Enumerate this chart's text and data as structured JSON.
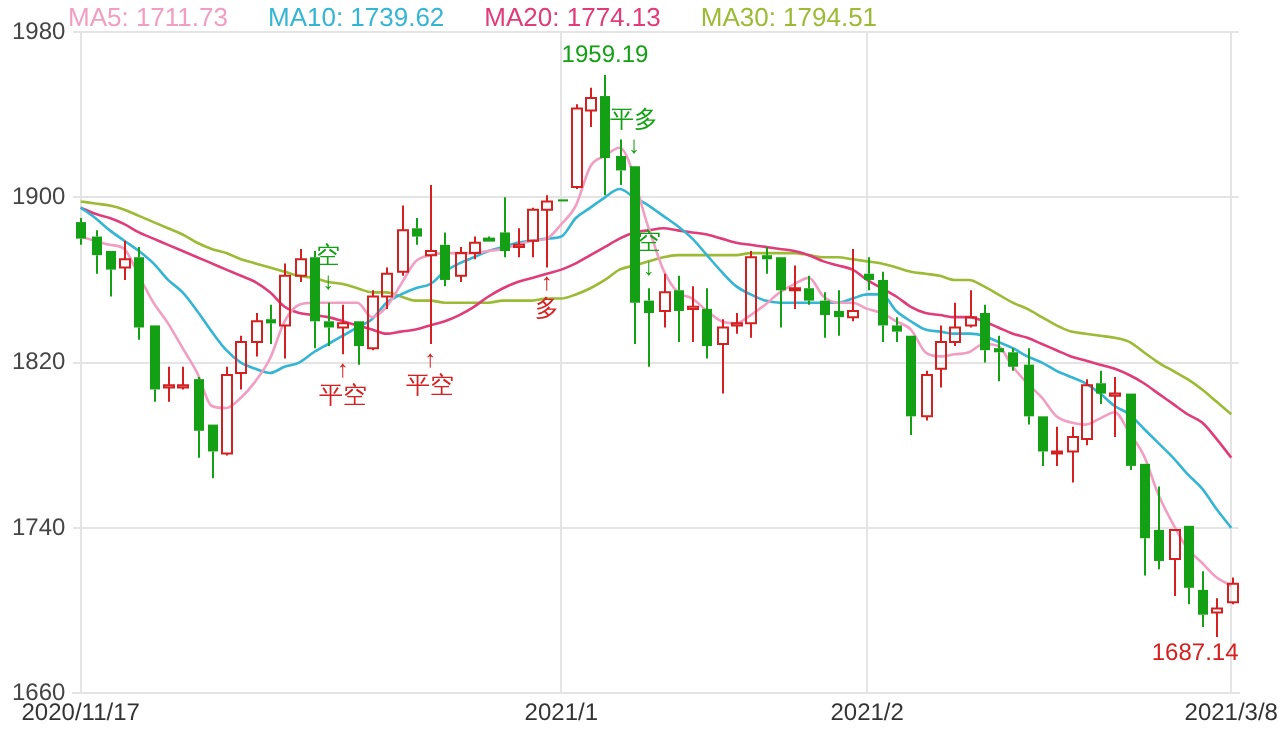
{
  "chart_data": {
    "type": "candlestick",
    "categories": [
      "2020/11/17",
      null,
      null,
      null,
      null,
      null,
      null,
      null,
      null,
      null,
      null,
      null,
      null,
      null,
      null,
      null,
      null,
      null,
      null,
      null,
      null,
      null,
      null,
      null,
      null,
      null,
      null,
      null,
      null,
      null,
      null,
      null,
      null,
      "2021/1",
      null,
      null,
      null,
      null,
      null,
      null,
      null,
      null,
      null,
      null,
      null,
      null,
      null,
      null,
      null,
      null,
      null,
      null,
      null,
      null,
      "2021/2",
      null,
      null,
      null,
      null,
      null,
      null,
      null,
      null,
      null,
      null,
      null,
      null,
      null,
      null,
      null,
      null,
      null,
      null,
      null,
      null,
      null,
      null,
      null,
      null,
      "2021/3/8"
    ],
    "ohlc": [
      [
        1888,
        1890,
        1877,
        1880
      ],
      [
        1881,
        1884,
        1863,
        1872
      ],
      [
        1874,
        1874,
        1852,
        1865
      ],
      [
        1866,
        1879,
        1860,
        1870
      ],
      [
        1871,
        1876,
        1831,
        1837
      ],
      [
        1838,
        1838,
        1801,
        1807
      ],
      [
        1808,
        1818,
        1801,
        1809
      ],
      [
        1808,
        1818,
        1807,
        1809
      ],
      [
        1812,
        1813,
        1774,
        1787
      ],
      [
        1790,
        1790,
        1764,
        1777
      ],
      [
        1776,
        1818,
        1775,
        1814
      ],
      [
        1815,
        1833,
        1807,
        1830
      ],
      [
        1830,
        1844,
        1823,
        1840
      ],
      [
        1841,
        1848,
        1829,
        1839
      ],
      [
        1838,
        1868,
        1822,
        1862
      ],
      [
        1862,
        1875,
        1859,
        1870
      ],
      [
        1871,
        1874,
        1827,
        1840
      ],
      [
        1840,
        1849,
        1828,
        1837
      ],
      [
        1837,
        1848,
        1824,
        1839
      ],
      [
        1840,
        1840,
        1819,
        1828
      ],
      [
        1827,
        1855,
        1826,
        1852
      ],
      [
        1852,
        1866,
        1846,
        1863
      ],
      [
        1864,
        1896,
        1862,
        1884
      ],
      [
        1885,
        1890,
        1877,
        1881
      ],
      [
        1872,
        1906,
        1829,
        1874
      ],
      [
        1877,
        1883,
        1857,
        1860
      ],
      [
        1862,
        1876,
        1859,
        1873
      ],
      [
        1873,
        1881,
        1870,
        1878
      ],
      [
        1880,
        1881,
        1880,
        1880
      ],
      [
        1883,
        1900,
        1871,
        1874
      ],
      [
        1876,
        1885,
        1871,
        1877
      ],
      [
        1879,
        1895,
        1871,
        1894
      ],
      [
        1894,
        1901,
        1866,
        1898
      ],
      [
        1899,
        1899,
        1898,
        1898
      ],
      [
        1905,
        1945,
        1904,
        1943
      ],
      [
        1942,
        1953,
        1934,
        1948
      ],
      [
        1949,
        1959.19,
        1901,
        1919
      ],
      [
        1920,
        1928,
        1906,
        1913
      ],
      [
        1915,
        1915,
        1829,
        1849
      ],
      [
        1850,
        1856,
        1818,
        1844
      ],
      [
        1845,
        1863,
        1837,
        1854
      ],
      [
        1855,
        1862,
        1830,
        1845
      ],
      [
        1846,
        1857,
        1830,
        1847
      ],
      [
        1846,
        1856,
        1822,
        1828
      ],
      [
        1829,
        1841,
        1805,
        1837
      ],
      [
        1838,
        1844,
        1834,
        1839
      ],
      [
        1839,
        1874,
        1832,
        1871
      ],
      [
        1872,
        1876,
        1863,
        1870
      ],
      [
        1871,
        1871,
        1837,
        1855
      ],
      [
        1855,
        1867,
        1846,
        1856
      ],
      [
        1856,
        1862,
        1848,
        1850
      ],
      [
        1850,
        1854,
        1832,
        1843
      ],
      [
        1845,
        1855,
        1833,
        1842
      ],
      [
        1842,
        1875,
        1840,
        1845
      ],
      [
        1863,
        1871,
        1855,
        1860
      ],
      [
        1860,
        1864,
        1830,
        1838
      ],
      [
        1838,
        1842,
        1830,
        1835
      ],
      [
        1833,
        1833,
        1785,
        1794
      ],
      [
        1794,
        1816,
        1792,
        1814
      ],
      [
        1817,
        1838,
        1808,
        1830
      ],
      [
        1830,
        1849,
        1828,
        1837
      ],
      [
        1838,
        1855,
        1837,
        1842
      ],
      [
        1844,
        1848,
        1820,
        1826
      ],
      [
        1827,
        1833,
        1811,
        1825
      ],
      [
        1825,
        1827,
        1816,
        1818
      ],
      [
        1819,
        1827,
        1790,
        1794
      ],
      [
        1794,
        1794,
        1770,
        1777
      ],
      [
        1776,
        1789,
        1770,
        1777
      ],
      [
        1777,
        1789,
        1762,
        1784
      ],
      [
        1783,
        1812,
        1780,
        1809
      ],
      [
        1810,
        1816,
        1800,
        1805
      ],
      [
        1804,
        1813,
        1784,
        1805
      ],
      [
        1805,
        1805,
        1768,
        1770
      ],
      [
        1771,
        1771,
        1717,
        1735
      ],
      [
        1739,
        1760,
        1720,
        1724
      ],
      [
        1725,
        1739,
        1707,
        1739
      ],
      [
        1741,
        1741,
        1703,
        1711
      ],
      [
        1710,
        1719,
        1692,
        1698
      ],
      [
        1699,
        1706,
        1687.14,
        1701
      ],
      [
        1704,
        1716,
        1703,
        1713
      ]
    ],
    "colors": [
      "#14a014",
      "#14a014",
      "#14a014",
      "#d42020",
      "#14a014",
      "#14a014",
      "#d42020",
      "#d42020",
      "#14a014",
      "#14a014",
      "#d42020",
      "#d42020",
      "#d42020",
      "#14a014",
      "#d42020",
      "#d42020",
      "#14a014",
      "#14a014",
      "#d42020",
      "#14a014",
      "#d42020",
      "#d42020",
      "#d42020",
      "#14a014",
      "#d42020",
      "#14a014",
      "#d42020",
      "#d42020",
      "#14a014",
      "#14a014",
      "#d42020",
      "#d42020",
      "#d42020",
      "#14a014",
      "#d42020",
      "#d42020",
      "#14a014",
      "#14a014",
      "#14a014",
      "#14a014",
      "#d42020",
      "#14a014",
      "#d42020",
      "#14a014",
      "#d42020",
      "#d42020",
      "#d42020",
      "#14a014",
      "#14a014",
      "#d42020",
      "#14a014",
      "#14a014",
      "#14a014",
      "#d42020",
      "#14a014",
      "#14a014",
      "#14a014",
      "#14a014",
      "#d42020",
      "#d42020",
      "#d42020",
      "#d42020",
      "#14a014",
      "#14a014",
      "#14a014",
      "#14a014",
      "#14a014",
      "#d42020",
      "#d42020",
      "#d42020",
      "#14a014",
      "#d42020",
      "#14a014",
      "#14a014",
      "#14a014",
      "#d42020",
      "#14a014",
      "#14a014",
      "#d42020",
      "#d42020"
    ],
    "value_labels": [
      null,
      null,
      null,
      null,
      null,
      null,
      null,
      null,
      null,
      null,
      null,
      null,
      null,
      null,
      null,
      null,
      null,
      "空\n↓",
      "↑\n平空",
      null,
      null,
      null,
      null,
      null,
      "↑\n平空",
      null,
      null,
      null,
      null,
      null,
      null,
      null,
      "↑\n多",
      null,
      null,
      null,
      "1959.19",
      null,
      "平多\n↓",
      "空\n↓",
      null,
      null,
      null,
      null,
      null,
      null,
      null,
      null,
      null,
      null,
      null,
      null,
      null,
      null,
      null,
      null,
      null,
      null,
      null,
      null,
      null,
      null,
      null,
      null,
      null,
      null,
      null,
      null,
      null,
      null,
      null,
      null,
      null,
      null,
      null,
      null,
      null,
      null,
      "1687.14",
      null
    ],
    "series": [
      {
        "name": "MA5: 1711.73",
        "type": "line",
        "color": "#f19ec2",
        "values": [
          1881,
          1879,
          1877,
          1875,
          1862,
          1849,
          1839,
          1827,
          1815,
          1799,
          1798,
          1803,
          1811,
          1822,
          1840,
          1848,
          1849,
          1849,
          1849,
          1849,
          1842,
          1847,
          1858,
          1869,
          1872,
          1873,
          1873,
          1873,
          1874,
          1875,
          1877,
          1879,
          1880,
          1887,
          1896,
          1915,
          1920,
          1924,
          null,
          1885,
          1865,
          1854,
          1851,
          1845,
          1840,
          1839,
          1843,
          1848,
          1854,
          1858,
          1861,
          1852,
          1849,
          1849,
          1846,
          1844,
          1840,
          1836,
          1825,
          1823,
          1824,
          1825,
          1829,
          1828,
          1818,
          1810,
          1803,
          1794,
          1791,
          1790,
          1793,
          1796,
          1786,
          1775,
          1756,
          1742,
          1730,
          1723,
          1716,
          1712
        ]
      },
      {
        "name": "MA10: 1739.62",
        "type": "line",
        "color": "#35b5d4",
        "values": [
          1895,
          1890,
          1884,
          1879,
          1874,
          1868,
          1860,
          1854,
          1845,
          1835,
          1826,
          1820,
          1817,
          1815,
          1818,
          1820,
          1825,
          1829,
          1833,
          1837,
          1841,
          1849,
          1853,
          1856,
          1858,
          1864,
          1868,
          1871,
          1874,
          1876,
          1878,
          1879,
          1880,
          1881,
          1890,
          1895,
          1900,
          1904,
          1900,
          1896,
          1891,
          1886,
          1880,
          1872,
          1864,
          1857,
          1853,
          1850,
          1849,
          1849,
          1849,
          1849,
          1849,
          1851,
          1853,
          1853,
          1845,
          1840,
          1836,
          1835,
          1834,
          1834,
          1833,
          1830,
          1827,
          1823,
          1820,
          1816,
          1813,
          1810,
          1805,
          1799,
          1795,
          1788,
          1781,
          1774,
          1766,
          1759,
          1749,
          1740
        ]
      },
      {
        "name": "MA20: 1774.13",
        "type": "line",
        "color": "#e03c7a",
        "values": [
          1895,
          1892,
          1890,
          1887,
          1883,
          1880,
          1877,
          1874,
          1871,
          1868,
          1865,
          1862,
          1859,
          1854,
          1847,
          1844,
          1843,
          1842,
          1840,
          1838,
          1836,
          1834,
          1835,
          1836,
          1838,
          1840,
          1843,
          1847,
          1852,
          1856,
          1859,
          1861,
          1863,
          1865,
          1868,
          1872,
          1876,
          1880,
          1883,
          1884,
          1885,
          1884,
          1883,
          1882,
          1880,
          1878,
          1877,
          1876,
          1875,
          1874,
          1872,
          1869,
          1867,
          1865,
          1860,
          1856,
          1852,
          1847,
          1844,
          1843,
          1842,
          1842,
          1840,
          1837,
          1834,
          1832,
          1829,
          1826,
          1823,
          1821,
          1819,
          1817,
          1814,
          1810,
          1805,
          1800,
          1795,
          1791,
          1783,
          1774
        ]
      },
      {
        "name": "MA30: 1794.51",
        "type": "line",
        "color": "#9bbb34",
        "values": [
          1898,
          1897,
          1896,
          1894,
          1891,
          1888,
          1885,
          1882,
          1878,
          1875,
          1873,
          1870,
          1868,
          1866,
          1864,
          1862,
          1861,
          1859,
          1858,
          1856,
          1854,
          1854,
          1852,
          1850,
          1850,
          1849,
          1849,
          1849,
          1849,
          1850,
          1850,
          1850,
          1851,
          1851,
          1853,
          1856,
          1860,
          1865,
          1867,
          1869,
          1871,
          1872,
          1872,
          1872,
          1872,
          1872,
          1873,
          1873,
          1873,
          1873,
          1872,
          1871,
          1871,
          1870,
          1869,
          1868,
          1866,
          1864,
          1863,
          1862,
          1860,
          1860,
          1857,
          1853,
          1849,
          1846,
          1842,
          1838,
          1835,
          1834,
          1833,
          1832,
          1830,
          1825,
          1820,
          1816,
          1812,
          1807,
          1801,
          1795
        ]
      }
    ],
    "ylim": [
      1660,
      1980
    ],
    "yticks": [
      1660,
      1740,
      1820,
      1900,
      1980
    ],
    "grid": true
  }
}
